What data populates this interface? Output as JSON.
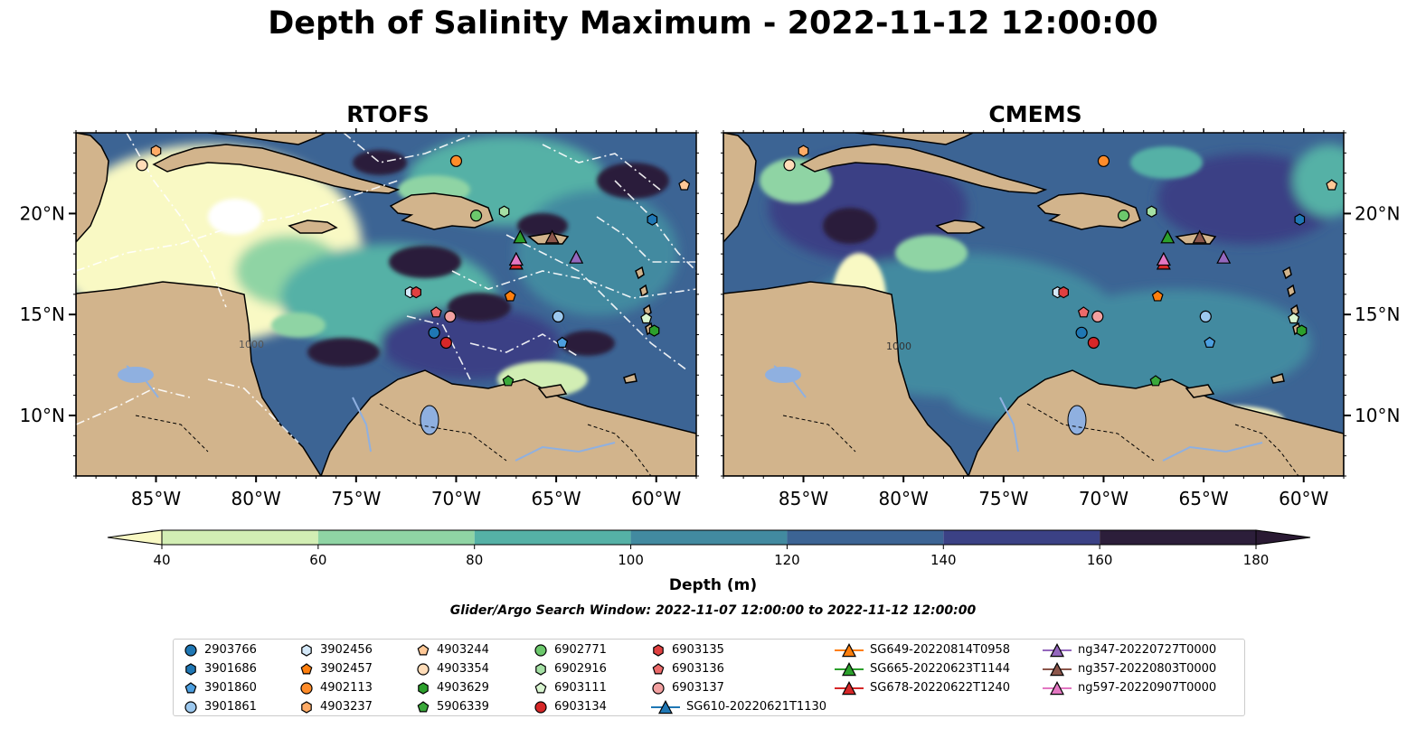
{
  "title": "Depth of Salinity Maximum - 2022-11-12 12:00:00",
  "panels": [
    {
      "title": "RTOFS",
      "style": "rtofs"
    },
    {
      "title": "CMEMS",
      "style": "cmems"
    }
  ],
  "map": {
    "lon_range": [
      -89,
      -58
    ],
    "lat_range": [
      7,
      24
    ],
    "x_ticks": [
      "85°W",
      "80°W",
      "75°W",
      "70°W",
      "65°W",
      "60°W"
    ],
    "x_tick_values": [
      -85,
      -80,
      -75,
      -70,
      -65,
      -60
    ],
    "y_ticks": [
      "20°N",
      "15°N",
      "10°N"
    ],
    "y_tick_values": [
      20,
      15,
      10
    ],
    "contour_label": "1000",
    "land_color": "#d2b48c",
    "water_feature_color": "#8fb0e0"
  },
  "colorbar": {
    "label": "Depth (m)",
    "ticks": [
      "40",
      "60",
      "80",
      "100",
      "120",
      "140",
      "160",
      "180"
    ],
    "colors": [
      "#f9f9c4",
      "#d2eeb4",
      "#8fd4a4",
      "#55b1a6",
      "#428aa0",
      "#3c6494",
      "#3b4185",
      "#2c1e3a",
      "#2a1a33"
    ]
  },
  "search_window": "Glider/Argo Search Window: 2022-11-07 12:00:00 to 2022-11-12 12:00:00",
  "legend": [
    {
      "label": "2903766",
      "marker": "circle",
      "color": "#1f77b4"
    },
    {
      "label": "3901686",
      "marker": "hexagon",
      "color": "#1f77b4"
    },
    {
      "label": "3901860",
      "marker": "pentagon",
      "color": "#4c9fe0"
    },
    {
      "label": "3901861",
      "marker": "circle",
      "color": "#9cc8ee"
    },
    {
      "label": "3902456",
      "marker": "hexagon",
      "color": "#d4e8f8"
    },
    {
      "label": "3902457",
      "marker": "pentagon",
      "color": "#ff7f0e"
    },
    {
      "label": "4902113",
      "marker": "circle",
      "color": "#ff8c2a"
    },
    {
      "label": "4903237",
      "marker": "hexagon",
      "color": "#ffab66"
    },
    {
      "label": "4903244",
      "marker": "pentagon",
      "color": "#ffc896"
    },
    {
      "label": "4903354",
      "marker": "circle",
      "color": "#ffdcb8"
    },
    {
      "label": "4903629",
      "marker": "hexagon",
      "color": "#2ca02c"
    },
    {
      "label": "5906339",
      "marker": "pentagon",
      "color": "#3aa83a"
    },
    {
      "label": "6902771",
      "marker": "circle",
      "color": "#6cc86c"
    },
    {
      "label": "6902916",
      "marker": "hexagon",
      "color": "#a4e0a4"
    },
    {
      "label": "6903111",
      "marker": "pentagon",
      "color": "#d8f4d0"
    },
    {
      "label": "6903134",
      "marker": "circle",
      "color": "#d62728"
    },
    {
      "label": "6903135",
      "marker": "hexagon",
      "color": "#e04040"
    },
    {
      "label": "6903136",
      "marker": "pentagon",
      "color": "#ec6a6a"
    },
    {
      "label": "6903137",
      "marker": "circle",
      "color": "#f2a0a0"
    },
    {
      "label": "SG610-20220621T1130",
      "marker": "triangle-line",
      "color": "#1f77b4"
    },
    {
      "label": "SG649-20220814T0958",
      "marker": "triangle-line",
      "color": "#ff7f0e"
    },
    {
      "label": "SG665-20220623T1144",
      "marker": "triangle-line",
      "color": "#2ca02c"
    },
    {
      "label": "SG678-20220622T1240",
      "marker": "triangle-line",
      "color": "#d62728"
    },
    {
      "label": "ng347-20220727T0000",
      "marker": "triangle-line",
      "color": "#9467bd"
    },
    {
      "label": "ng357-20220803T0000",
      "marker": "triangle-line",
      "color": "#8c564b"
    },
    {
      "label": "ng597-20220907T0000",
      "marker": "triangle-line",
      "color": "#e377c2"
    }
  ],
  "observations": [
    {
      "label": "2903766",
      "lon": -71.1,
      "lat": 14.1
    },
    {
      "label": "3901686",
      "lon": -60.2,
      "lat": 19.7
    },
    {
      "label": "3901860",
      "lon": -64.7,
      "lat": 13.6
    },
    {
      "label": "3901861",
      "lon": -64.9,
      "lat": 14.9
    },
    {
      "label": "3902456",
      "lon": -72.3,
      "lat": 16.1
    },
    {
      "label": "3902457",
      "lon": -67.3,
      "lat": 15.9
    },
    {
      "label": "4902113",
      "lon": -70.0,
      "lat": 22.6
    },
    {
      "label": "4903237",
      "lon": -85.0,
      "lat": 23.1
    },
    {
      "label": "4903244",
      "lon": -58.6,
      "lat": 21.4
    },
    {
      "label": "4903354",
      "lon": -85.7,
      "lat": 22.4
    },
    {
      "label": "4903629",
      "lon": -60.1,
      "lat": 14.2
    },
    {
      "label": "5906339",
      "lon": -67.4,
      "lat": 11.7
    },
    {
      "label": "6902771",
      "lon": -69.0,
      "lat": 19.9
    },
    {
      "label": "6902916",
      "lon": -67.6,
      "lat": 20.1
    },
    {
      "label": "6903111",
      "lon": -60.5,
      "lat": 14.8
    },
    {
      "label": "6903134",
      "lon": -70.5,
      "lat": 13.6
    },
    {
      "label": "6903135",
      "lon": -72.0,
      "lat": 16.1
    },
    {
      "label": "6903136",
      "lon": -71.0,
      "lat": 15.1
    },
    {
      "label": "6903137",
      "lon": -70.3,
      "lat": 14.9
    },
    {
      "label": "SG649-20220814T0958",
      "lon": -67.0,
      "lat": 17.7
    },
    {
      "label": "SG665-20220623T1144",
      "lon": -66.8,
      "lat": 18.8
    },
    {
      "label": "SG678-20220622T1240",
      "lon": -67.0,
      "lat": 17.5
    },
    {
      "label": "ng347-20220727T0000",
      "lon": -64.0,
      "lat": 17.8
    },
    {
      "label": "ng357-20220803T0000",
      "lon": -65.2,
      "lat": 18.8
    },
    {
      "label": "ng597-20220907T0000",
      "lon": -67.0,
      "lat": 17.7
    }
  ]
}
